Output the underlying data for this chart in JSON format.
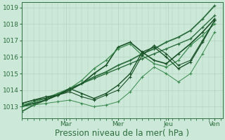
{
  "title": "",
  "xlabel": "Pression niveau de la mer( hPa )",
  "ylabel": "",
  "bg_color": "#cce8d8",
  "plot_bg_color": "#cce8d8",
  "grid_color": "#b0d4be",
  "ylim": [
    1012.3,
    1019.3
  ],
  "xlim": [
    0,
    100
  ],
  "xtick_positions": [
    22,
    48,
    73,
    96
  ],
  "xtick_labels": [
    "Mar",
    "Mer",
    "Jeu",
    "Ven"
  ],
  "ytick_positions": [
    1013,
    1014,
    1015,
    1016,
    1017,
    1018,
    1019
  ],
  "ytick_labels": [
    "1013",
    "1014",
    "1015",
    "1016",
    "1017",
    "1018",
    "1019"
  ],
  "series": [
    {
      "x": [
        0,
        6,
        12,
        18,
        24,
        30,
        36,
        42,
        48,
        54,
        60,
        66,
        72,
        78,
        84,
        90,
        96
      ],
      "y": [
        1012.7,
        1013.1,
        1013.4,
        1013.7,
        1014.1,
        1014.4,
        1014.8,
        1015.1,
        1015.5,
        1015.8,
        1016.2,
        1016.5,
        1016.9,
        1017.2,
        1017.6,
        1018.3,
        1019.1
      ],
      "color": "#2d6e3e",
      "lw": 1.3,
      "marker": "+"
    },
    {
      "x": [
        0,
        6,
        12,
        18,
        24,
        30,
        36,
        42,
        48,
        54,
        60,
        66,
        72,
        78,
        84,
        90,
        96
      ],
      "y": [
        1013.0,
        1013.3,
        1013.5,
        1013.8,
        1014.1,
        1014.4,
        1014.7,
        1015.0,
        1015.3,
        1015.6,
        1015.9,
        1016.2,
        1016.5,
        1016.8,
        1017.1,
        1017.8,
        1018.5
      ],
      "color": "#2d6e3e",
      "lw": 1.0,
      "marker": "+"
    },
    {
      "x": [
        0,
        6,
        12,
        18,
        24,
        30,
        36,
        42,
        48,
        54,
        60,
        66,
        72,
        78,
        84,
        90,
        96
      ],
      "y": [
        1013.0,
        1013.2,
        1013.4,
        1013.7,
        1014.0,
        1014.4,
        1015.0,
        1015.5,
        1016.6,
        1016.9,
        1016.3,
        1015.8,
        1015.6,
        1016.2,
        1016.8,
        1017.5,
        1018.3
      ],
      "color": "#1a5228",
      "lw": 1.2,
      "marker": "+"
    },
    {
      "x": [
        0,
        6,
        12,
        18,
        24,
        30,
        36,
        42,
        48,
        54,
        60,
        66,
        72,
        78,
        84,
        90,
        96
      ],
      "y": [
        1013.1,
        1013.3,
        1013.5,
        1013.8,
        1014.1,
        1014.6,
        1015.3,
        1015.8,
        1016.5,
        1016.8,
        1016.1,
        1015.6,
        1015.4,
        1015.8,
        1016.7,
        1017.3,
        1018.0
      ],
      "color": "#3a8a4e",
      "lw": 0.9,
      "marker": "+"
    },
    {
      "x": [
        0,
        6,
        12,
        18,
        24,
        30,
        36,
        42,
        48,
        54,
        60,
        66,
        72,
        78,
        84,
        90,
        96
      ],
      "y": [
        1013.2,
        1013.4,
        1013.6,
        1013.7,
        1014.1,
        1013.8,
        1013.5,
        1013.8,
        1014.3,
        1015.0,
        1016.3,
        1016.6,
        1016.0,
        1015.3,
        1015.7,
        1016.9,
        1018.2
      ],
      "color": "#1a5228",
      "lw": 1.0,
      "marker": "+"
    },
    {
      "x": [
        0,
        6,
        12,
        18,
        24,
        30,
        36,
        42,
        48,
        54,
        60,
        66,
        72,
        78,
        84,
        90,
        96
      ],
      "y": [
        1013.2,
        1013.4,
        1013.5,
        1013.7,
        1013.9,
        1013.6,
        1013.4,
        1013.7,
        1014.0,
        1014.8,
        1016.1,
        1016.7,
        1016.2,
        1015.5,
        1015.8,
        1017.0,
        1018.2
      ],
      "color": "#1a5228",
      "lw": 0.8,
      "marker": "+"
    },
    {
      "x": [
        0,
        6,
        12,
        18,
        24,
        30,
        36,
        42,
        48,
        54,
        60,
        66,
        72,
        78,
        84,
        90,
        96
      ],
      "y": [
        1013.0,
        1013.1,
        1013.2,
        1013.3,
        1013.4,
        1013.2,
        1013.0,
        1013.1,
        1013.3,
        1013.9,
        1014.8,
        1015.4,
        1015.0,
        1014.5,
        1015.0,
        1016.2,
        1017.5
      ],
      "color": "#3a8a4e",
      "lw": 0.7,
      "marker": "+"
    }
  ],
  "xlabel_fontsize": 8.5,
  "tick_fontsize": 6.5,
  "tick_color": "#2d6e3e",
  "axis_color": "#2d6e3e"
}
